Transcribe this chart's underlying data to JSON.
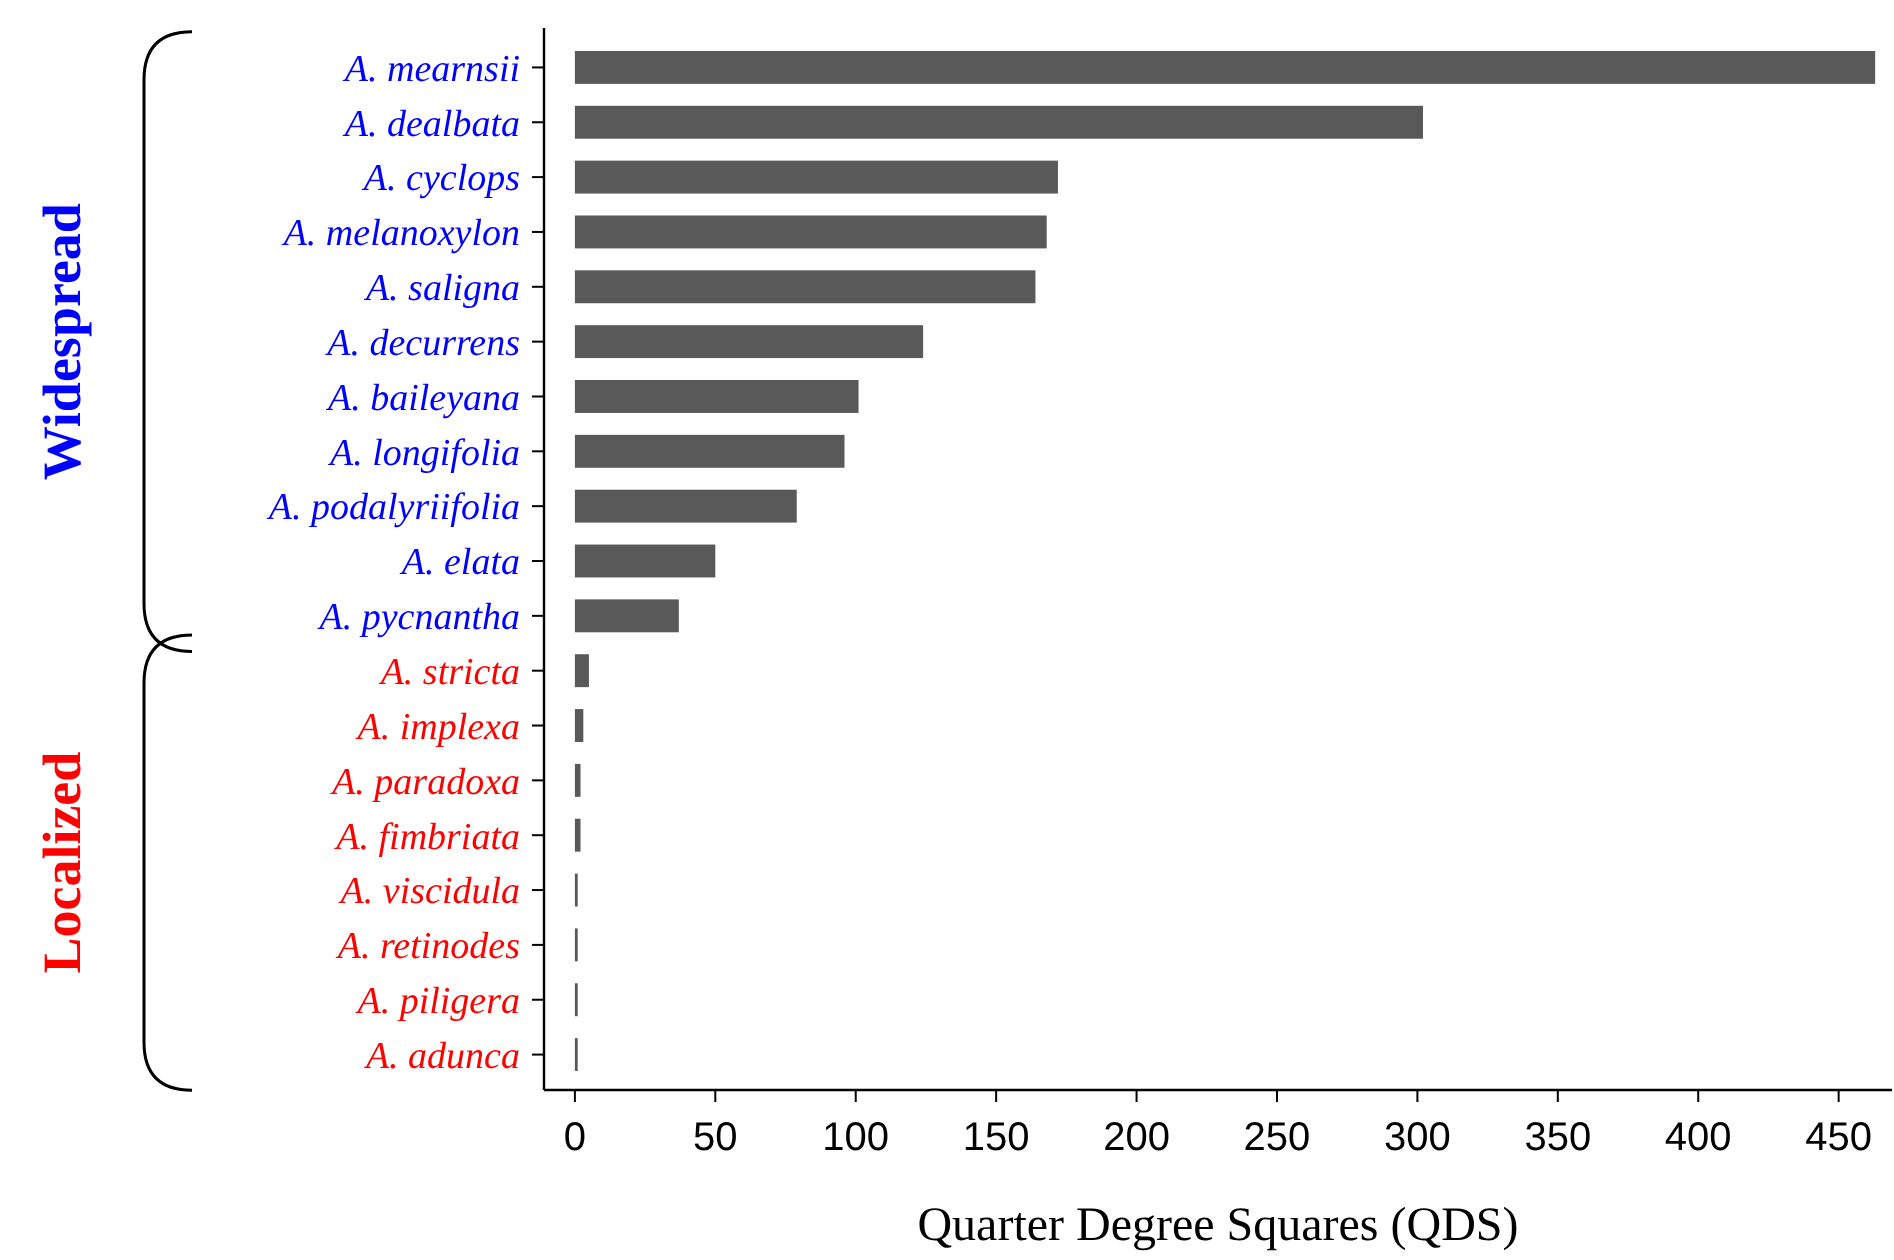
{
  "chart_data": {
    "type": "bar",
    "orientation": "horizontal",
    "xlabel": "Quarter Degree Squares (QDS)",
    "categories": [
      "A. mearnsii",
      "A. dealbata",
      "A. cyclops",
      "A. melanoxylon",
      "A. saligna",
      "A. decurrens",
      "A. baileyana",
      "A. longifolia",
      "A. podalyriifolia",
      "A. elata",
      "A. pycnantha",
      "A. stricta",
      "A. implexa",
      "A. paradoxa",
      "A. fimbriata",
      "A. viscidula",
      "A. retinodes",
      "A. piligera",
      "A. adunca"
    ],
    "series": [
      {
        "color": "#595959",
        "values": [
          463,
          302,
          172,
          168,
          164,
          124,
          101,
          96,
          79,
          50,
          37,
          null,
          null,
          null,
          null,
          null,
          null,
          null,
          null
        ]
      },
      {
        "color": "#595959",
        "values": [
          null,
          null,
          null,
          null,
          null,
          null,
          null,
          null,
          null,
          null,
          null,
          5,
          3,
          2,
          2,
          1,
          1,
          1,
          1
        ]
      }
    ],
    "xlim": [
      -11,
      469
    ],
    "xticks": [
      0,
      50,
      100,
      150,
      200,
      250,
      300,
      350,
      400,
      450
    ],
    "annotations": [
      "Widespread",
      "Localized"
    ],
    "grid": false
  }
}
